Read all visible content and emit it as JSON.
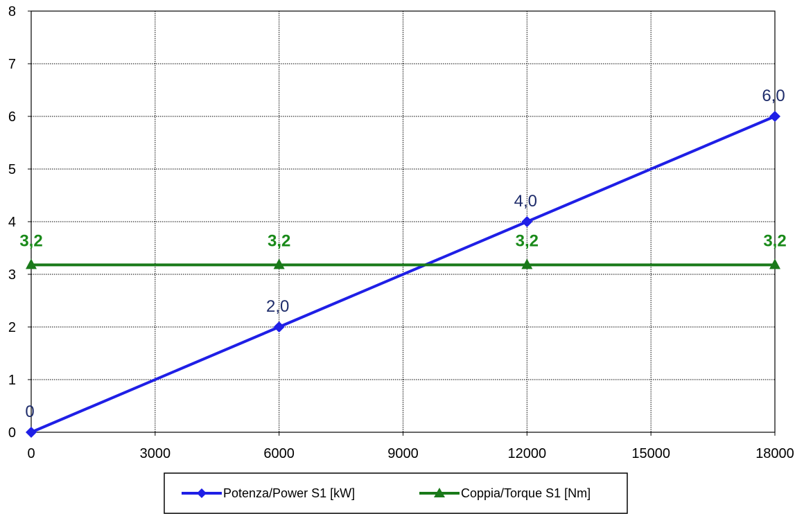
{
  "chart_data": {
    "type": "line",
    "x": [
      0,
      6000,
      12000,
      18000
    ],
    "xticks": [
      0,
      3000,
      6000,
      9000,
      12000,
      15000,
      18000
    ],
    "yticks": [
      0,
      1,
      2,
      3,
      4,
      5,
      6,
      7,
      8
    ],
    "xlim": [
      0,
      18000
    ],
    "ylim": [
      0,
      8
    ],
    "grid": true,
    "legend_position": "bottom",
    "series": [
      {
        "name": "Potenza/Power S1 [kW]",
        "values": [
          0,
          2.0,
          4.0,
          6.0
        ],
        "labels": [
          "0",
          "2,0",
          "4,0",
          "6,0"
        ],
        "color": "#1f1fe6",
        "label_color": "#1f2d6b",
        "marker": "diamond"
      },
      {
        "name": "Coppia/Torque S1 [Nm]",
        "values": [
          3.18,
          3.18,
          3.18,
          3.18
        ],
        "labels": [
          "3,2",
          "3,2",
          "3,2",
          "3,2"
        ],
        "color": "#1a7a1a",
        "label_color": "#1a8a1a",
        "marker": "triangle"
      }
    ]
  }
}
